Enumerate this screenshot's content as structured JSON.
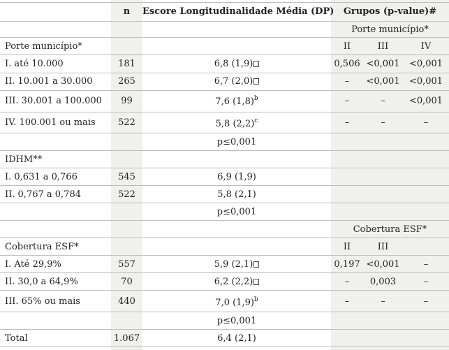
{
  "header": {
    "n": "n",
    "score": "Escore Longitudinalidade Média (DP)",
    "groups": "Grupos (p-value)#"
  },
  "porte": {
    "title": "Porte município*",
    "subheader": "Porte município*",
    "cols": [
      "II",
      "III",
      "IV"
    ],
    "rows": [
      {
        "label": "I. até 10.000",
        "n": "181",
        "score": "6,8 (1,9)",
        "sup": "",
        "glyph": true,
        "p": [
          "0,506",
          "<0,001",
          "<0,001"
        ]
      },
      {
        "label": "II. 10.001 a 30.000",
        "n": "265",
        "score": "6,7 (2,0)",
        "sup": "",
        "glyph": true,
        "p": [
          "–",
          "<0,001",
          "<0,001"
        ]
      },
      {
        "label": "III. 30.001 a 100.000",
        "n": "99",
        "score": "7,6 (1,8)",
        "sup": "b",
        "glyph": false,
        "p": [
          "–",
          "–",
          "<0,001"
        ]
      },
      {
        "label": "IV. 100.001 ou mais",
        "n": "522",
        "score": "5,8 (2,2)",
        "sup": "c",
        "glyph": false,
        "p": [
          "–",
          "–",
          "–"
        ]
      }
    ],
    "pvalue": "p≤0,001"
  },
  "idhm": {
    "title": "IDHM**",
    "rows": [
      {
        "label": "I. 0,631 a 0,766",
        "n": "545",
        "score": "6,9 (1,9)"
      },
      {
        "label": "II. 0,767 a 0,784",
        "n": "522",
        "score": "5,8 (2,1)"
      }
    ],
    "pvalue": "p≤0,001"
  },
  "esf": {
    "title": "Cobertura ESF*",
    "subheader": "Cobertura ESF*",
    "cols": [
      "II",
      "III"
    ],
    "rows": [
      {
        "label": "I. Até 29,9%",
        "n": "557",
        "score": "5,9 (2,1)",
        "sup": "",
        "glyph": true,
        "p": [
          "0,197",
          "<0,001"
        ],
        "p4": "–"
      },
      {
        "label": "II. 30,0 a 64,9%",
        "n": "70",
        "score": "6,2 (2,2)",
        "sup": "",
        "glyph": true,
        "p": [
          "–",
          "0,003"
        ],
        "p4": "–"
      },
      {
        "label": "III. 65% ou mais",
        "n": "440",
        "score": "7,0 (1,9)",
        "sup": "b",
        "glyph": false,
        "p": [
          "–",
          "–"
        ],
        "p4": "–"
      }
    ],
    "pvalue": "p≤0,001"
  },
  "total": {
    "label": "Total",
    "n": "1.067",
    "score": "6,4 (2,1)"
  }
}
